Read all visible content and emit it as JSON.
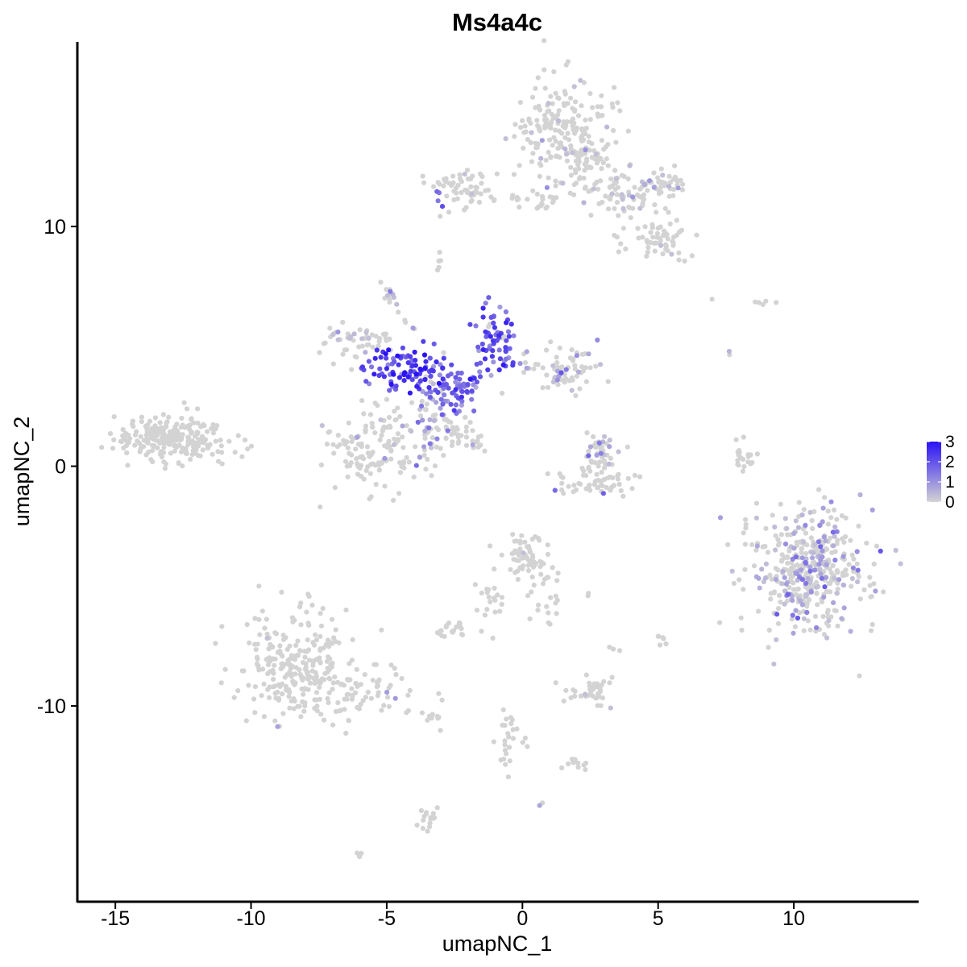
{
  "chart_data": {
    "type": "scatter",
    "title": "Ms4a4c",
    "xlabel": "umapNC_1",
    "ylabel": "umapNC_2",
    "xlim": [
      -16.4,
      14.6
    ],
    "ylim": [
      -18.2,
      17.7
    ],
    "x_ticks": [
      -15,
      -10,
      -5,
      0,
      5,
      10
    ],
    "x_tick_labels": [
      "-15",
      "-10",
      "-5",
      "0",
      "5",
      "10"
    ],
    "y_ticks": [
      -10,
      0,
      10
    ],
    "y_tick_labels": [
      "-10",
      "0",
      "10"
    ],
    "grid": false,
    "color_scale": {
      "low": "#d3d3d3",
      "high": "#2a12f5",
      "range": [
        0,
        3
      ],
      "breaks": [
        0,
        1,
        2,
        3
      ],
      "labels": [
        "0",
        "1",
        "2",
        "3"
      ],
      "legend_position": "right"
    },
    "clusters": [
      {
        "center": [
          -12.9,
          1.2
        ],
        "spread": [
          1.05,
          0.5
        ],
        "n": 230,
        "expr": 0.02
      },
      {
        "center": [
          -8.2,
          -8.3
        ],
        "spread": [
          1.0,
          1.1
        ],
        "n": 260,
        "expr": 0.02
      },
      {
        "center": [
          -6.0,
          -9.4
        ],
        "spread": [
          1.0,
          0.45
        ],
        "n": 60,
        "expr": 0.03
      },
      {
        "center": [
          -3.3,
          -10.3
        ],
        "spread": [
          0.3,
          0.3
        ],
        "n": 12,
        "expr": 0.0
      },
      {
        "center": [
          -3.5,
          -14.8
        ],
        "spread": [
          0.25,
          0.4
        ],
        "n": 16,
        "expr": 0.0
      },
      {
        "center": [
          -6.1,
          -16.2
        ],
        "spread": [
          0.1,
          0.1
        ],
        "n": 3,
        "expr": 0.0
      },
      {
        "center": [
          -6.0,
          5.2
        ],
        "spread": [
          0.6,
          0.4
        ],
        "n": 50,
        "expr": 0.3
      },
      {
        "center": [
          -4.4,
          4.1
        ],
        "spread": [
          0.8,
          0.45
        ],
        "n": 90,
        "expr": 2.3
      },
      {
        "center": [
          -2.6,
          3.2
        ],
        "spread": [
          0.7,
          0.5
        ],
        "n": 80,
        "expr": 1.6
      },
      {
        "center": [
          -1.0,
          5.3
        ],
        "spread": [
          0.4,
          0.7
        ],
        "n": 70,
        "expr": 1.9
      },
      {
        "center": [
          1.5,
          4.1
        ],
        "spread": [
          0.7,
          0.5
        ],
        "n": 70,
        "expr": 0.4
      },
      {
        "center": [
          -3.5,
          1.6
        ],
        "spread": [
          0.5,
          0.8
        ],
        "n": 40,
        "expr": 0.9
      },
      {
        "center": [
          -5.6,
          0.5
        ],
        "spread": [
          0.9,
          0.85
        ],
        "n": 130,
        "expr": 0.08
      },
      {
        "center": [
          -5.0,
          7.4
        ],
        "spread": [
          0.15,
          0.2
        ],
        "n": 8,
        "expr": 0.3
      },
      {
        "center": [
          -3.1,
          8.5
        ],
        "spread": [
          0.08,
          0.25
        ],
        "n": 5,
        "expr": 0.2
      },
      {
        "center": [
          -2.4,
          1.2
        ],
        "spread": [
          0.5,
          0.35
        ],
        "n": 20,
        "expr": 0.1
      },
      {
        "center": [
          1.6,
          14.0
        ],
        "spread": [
          0.9,
          1.0
        ],
        "n": 200,
        "expr": 0.12
      },
      {
        "center": [
          -2.2,
          11.6
        ],
        "spread": [
          0.7,
          0.45
        ],
        "n": 60,
        "expr": 0.08
      },
      {
        "center": [
          0.3,
          11.1
        ],
        "spread": [
          0.8,
          0.2
        ],
        "n": 25,
        "expr": 0.05
      },
      {
        "center": [
          3.5,
          11.6
        ],
        "spread": [
          0.8,
          0.6
        ],
        "n": 80,
        "expr": 0.25
      },
      {
        "center": [
          5.2,
          11.7
        ],
        "spread": [
          0.5,
          0.3
        ],
        "n": 40,
        "expr": 0.2
      },
      {
        "center": [
          5.0,
          9.4
        ],
        "spread": [
          0.7,
          0.45
        ],
        "n": 60,
        "expr": 0.02
      },
      {
        "center": [
          2.3,
          13.0
        ],
        "spread": [
          0.4,
          0.3
        ],
        "n": 30,
        "expr": 0.1
      },
      {
        "center": [
          2.9,
          0.6
        ],
        "spread": [
          0.3,
          0.4
        ],
        "n": 40,
        "expr": 0.5
      },
      {
        "center": [
          2.9,
          -0.6
        ],
        "spread": [
          0.9,
          0.35
        ],
        "n": 60,
        "expr": 0.03
      },
      {
        "center": [
          8.1,
          0.3
        ],
        "spread": [
          0.2,
          0.4
        ],
        "n": 20,
        "expr": 0.0
      },
      {
        "center": [
          10.6,
          -4.3
        ],
        "spread": [
          1.1,
          1.3
        ],
        "n": 420,
        "expr": 0.5
      },
      {
        "center": [
          0.0,
          -3.8
        ],
        "spread": [
          0.45,
          0.5
        ],
        "n": 60,
        "expr": 0.05
      },
      {
        "center": [
          -1.2,
          -5.6
        ],
        "spread": [
          0.3,
          0.6
        ],
        "n": 20,
        "expr": 0.0
      },
      {
        "center": [
          -2.6,
          -6.9
        ],
        "spread": [
          0.3,
          0.2
        ],
        "n": 20,
        "expr": 0.0
      },
      {
        "center": [
          1.0,
          -5.2
        ],
        "spread": [
          0.4,
          0.8
        ],
        "n": 25,
        "expr": 0.0
      },
      {
        "center": [
          2.6,
          -9.4
        ],
        "spread": [
          0.4,
          0.35
        ],
        "n": 40,
        "expr": 0.05
      },
      {
        "center": [
          -0.6,
          -11.4
        ],
        "spread": [
          0.2,
          0.6
        ],
        "n": 18,
        "expr": 0.0
      },
      {
        "center": [
          1.9,
          -12.5
        ],
        "spread": [
          0.3,
          0.2
        ],
        "n": 10,
        "expr": 0.0
      },
      {
        "center": [
          5.1,
          -7.2
        ],
        "spread": [
          0.12,
          0.12
        ],
        "n": 6,
        "expr": 0.1
      },
      {
        "center": [
          3.4,
          -7.6
        ],
        "spread": [
          0.1,
          0.1
        ],
        "n": 3,
        "expr": 0.0
      },
      {
        "center": [
          -3.0,
          11.3
        ],
        "spread": [
          0.15,
          0.15
        ],
        "n": 4,
        "expr": 1.5
      },
      {
        "center": [
          8.9,
          6.8
        ],
        "spread": [
          0.35,
          0.1
        ],
        "n": 5,
        "expr": 0.0
      },
      {
        "center": [
          7.0,
          6.9
        ],
        "spread": [
          0.05,
          0.05
        ],
        "n": 1,
        "expr": 0.0
      },
      {
        "center": [
          7.7,
          4.7
        ],
        "spread": [
          0.05,
          0.1
        ],
        "n": 2,
        "expr": 0.6
      },
      {
        "center": [
          0.6,
          -14.1
        ],
        "spread": [
          0.05,
          0.05
        ],
        "n": 2,
        "expr": 1.0
      }
    ],
    "arms": [
      {
        "from": [
          -2.8,
          1.8
        ],
        "to": [
          -1.3,
          0.6
        ],
        "n": 22,
        "expr": 0.05
      },
      {
        "from": [
          -5.0,
          7.2
        ],
        "to": [
          -3.5,
          5.0
        ],
        "n": 10,
        "expr": 0.4
      },
      {
        "from": [
          -3.2,
          2.0
        ],
        "to": [
          -3.6,
          0.2
        ],
        "n": 10,
        "expr": 0.5
      },
      {
        "from": [
          2.3,
          -5.3
        ],
        "to": [
          2.5,
          -5.3
        ],
        "n": 2,
        "expr": 0.0
      },
      {
        "from": [
          -0.6,
          -10.2
        ],
        "to": [
          0.3,
          -11.8
        ],
        "n": 8,
        "expr": 0.0
      }
    ]
  }
}
